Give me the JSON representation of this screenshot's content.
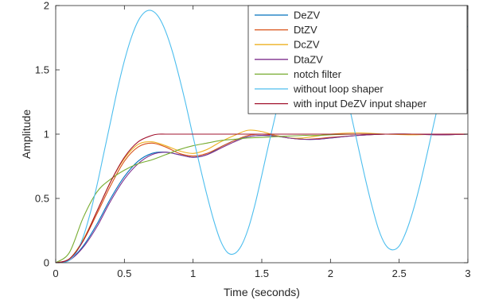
{
  "chart_data": {
    "type": "line",
    "title": "",
    "xlabel": "Time (seconds)",
    "ylabel": "Amplitude",
    "xlim": [
      0,
      3
    ],
    "ylim": [
      0,
      2
    ],
    "xticks": [
      "0",
      "0.5",
      "1",
      "1.5",
      "2",
      "2.5",
      "3"
    ],
    "yticks": [
      "0",
      "0.5",
      "1",
      "1.5",
      "2"
    ],
    "legend_position": "top-right",
    "grid": false,
    "series": [
      {
        "name": "DeZV",
        "color": "#0072bd",
        "x": [
          0,
          0.1,
          0.2,
          0.3,
          0.4,
          0.5,
          0.6,
          0.7,
          0.8,
          0.9,
          1.0,
          1.1,
          1.2,
          1.3,
          1.4,
          1.5,
          1.6,
          1.7,
          1.8,
          1.9,
          2.0,
          2.2,
          2.4,
          2.6,
          2.8,
          3.0
        ],
        "y": [
          0,
          0.02,
          0.13,
          0.3,
          0.5,
          0.67,
          0.79,
          0.85,
          0.86,
          0.84,
          0.82,
          0.84,
          0.9,
          0.95,
          0.98,
          0.99,
          0.985,
          0.97,
          0.96,
          0.96,
          0.97,
          0.99,
          1.0,
          1.0,
          0.995,
          1.0
        ]
      },
      {
        "name": "DtZV",
        "color": "#d95319",
        "x": [
          0,
          0.1,
          0.2,
          0.3,
          0.4,
          0.5,
          0.6,
          0.7,
          0.8,
          0.9,
          1.0,
          1.1,
          1.2,
          1.3,
          1.4,
          1.5,
          1.6,
          1.7,
          1.8,
          1.9,
          2.0,
          2.2,
          2.4,
          2.6,
          2.8,
          3.0
        ],
        "y": [
          0,
          0.03,
          0.17,
          0.38,
          0.6,
          0.79,
          0.9,
          0.93,
          0.9,
          0.85,
          0.83,
          0.85,
          0.9,
          0.95,
          0.99,
          1.0,
          0.99,
          0.97,
          0.96,
          0.965,
          0.975,
          0.99,
          1.0,
          1.0,
          0.995,
          1.0
        ]
      },
      {
        "name": "DcZV",
        "color": "#edb120",
        "x": [
          0,
          0.1,
          0.2,
          0.3,
          0.4,
          0.5,
          0.6,
          0.7,
          0.8,
          0.9,
          1.0,
          1.1,
          1.2,
          1.3,
          1.4,
          1.5,
          1.6,
          1.7,
          1.8,
          1.9,
          2.0,
          2.2,
          2.4,
          2.6,
          2.8,
          3.0
        ],
        "y": [
          0,
          0.03,
          0.18,
          0.4,
          0.63,
          0.81,
          0.92,
          0.94,
          0.91,
          0.87,
          0.85,
          0.88,
          0.94,
          0.99,
          1.03,
          1.02,
          0.99,
          0.97,
          0.97,
          0.985,
          1.0,
          1.01,
          1.0,
          0.995,
          1.0,
          1.0
        ]
      },
      {
        "name": "DtaZV",
        "color": "#7e2f8e",
        "x": [
          0,
          0.1,
          0.2,
          0.3,
          0.4,
          0.5,
          0.6,
          0.7,
          0.8,
          0.9,
          1.0,
          1.1,
          1.2,
          1.3,
          1.4,
          1.5,
          1.6,
          1.7,
          1.8,
          1.9,
          2.0,
          2.2,
          2.4,
          2.6,
          2.8,
          3.0
        ],
        "y": [
          0,
          0.02,
          0.12,
          0.28,
          0.48,
          0.65,
          0.77,
          0.84,
          0.86,
          0.84,
          0.82,
          0.84,
          0.89,
          0.94,
          0.98,
          0.99,
          0.985,
          0.97,
          0.96,
          0.96,
          0.97,
          0.99,
          1.0,
          1.0,
          0.995,
          1.0
        ]
      },
      {
        "name": "notch filter",
        "color": "#77ac30",
        "x": [
          0,
          0.1,
          0.2,
          0.3,
          0.4,
          0.5,
          0.6,
          0.7,
          0.8,
          0.9,
          1.0,
          1.1,
          1.2,
          1.3,
          1.4,
          1.5,
          1.6,
          1.7,
          1.8,
          1.9,
          2.0,
          2.2,
          2.4,
          2.6,
          2.8,
          3.0
        ],
        "y": [
          0,
          0.08,
          0.35,
          0.55,
          0.65,
          0.72,
          0.77,
          0.8,
          0.84,
          0.88,
          0.91,
          0.93,
          0.95,
          0.96,
          0.97,
          0.975,
          0.98,
          0.985,
          0.99,
          0.99,
          0.995,
          1.0,
          1.0,
          1.0,
          1.0,
          1.0
        ]
      },
      {
        "name": "without loop shaper",
        "color": "#4dbeee",
        "x": [
          0,
          0.05,
          0.1,
          0.15,
          0.2,
          0.25,
          0.3,
          0.35,
          0.4,
          0.45,
          0.5,
          0.55,
          0.6,
          0.65,
          0.7,
          0.75,
          0.8,
          0.85,
          0.9,
          0.95,
          1.0,
          1.05,
          1.1,
          1.15,
          1.2,
          1.25,
          1.3,
          1.35,
          1.4,
          1.45,
          1.5,
          1.55,
          1.6,
          1.65,
          1.7,
          1.75,
          1.8,
          1.85,
          1.9,
          1.95,
          2.0,
          2.05,
          2.1,
          2.15,
          2.2,
          2.25,
          2.3,
          2.35,
          2.4,
          2.45,
          2.5,
          2.55,
          2.6,
          2.65,
          2.7,
          2.75,
          2.8,
          2.85,
          2.9,
          2.95,
          3.0
        ],
        "y": [
          0,
          0.0,
          0.02,
          0.08,
          0.2,
          0.38,
          0.6,
          0.85,
          1.1,
          1.35,
          1.57,
          1.75,
          1.88,
          1.95,
          1.96,
          1.91,
          1.8,
          1.64,
          1.44,
          1.22,
          0.98,
          0.75,
          0.53,
          0.33,
          0.17,
          0.08,
          0.07,
          0.13,
          0.26,
          0.45,
          0.68,
          0.92,
          1.15,
          1.37,
          1.57,
          1.72,
          1.84,
          1.9,
          1.9,
          1.84,
          1.73,
          1.57,
          1.37,
          1.15,
          0.91,
          0.67,
          0.45,
          0.26,
          0.14,
          0.1,
          0.13,
          0.24,
          0.4,
          0.6,
          0.83,
          1.07,
          1.3,
          1.5,
          1.66,
          1.78,
          1.84
        ]
      },
      {
        "name": "with input DeZV input shaper",
        "color": "#a2142f",
        "x": [
          0,
          0.1,
          0.2,
          0.3,
          0.4,
          0.5,
          0.6,
          0.7,
          0.75,
          0.8,
          0.9,
          1.0,
          1.5,
          2.0,
          2.5,
          3.0
        ],
        "y": [
          0,
          0.03,
          0.17,
          0.4,
          0.63,
          0.82,
          0.94,
          0.99,
          1.0,
          1.0,
          1.0,
          1.0,
          1.0,
          1.0,
          1.0,
          1.0
        ]
      }
    ]
  }
}
